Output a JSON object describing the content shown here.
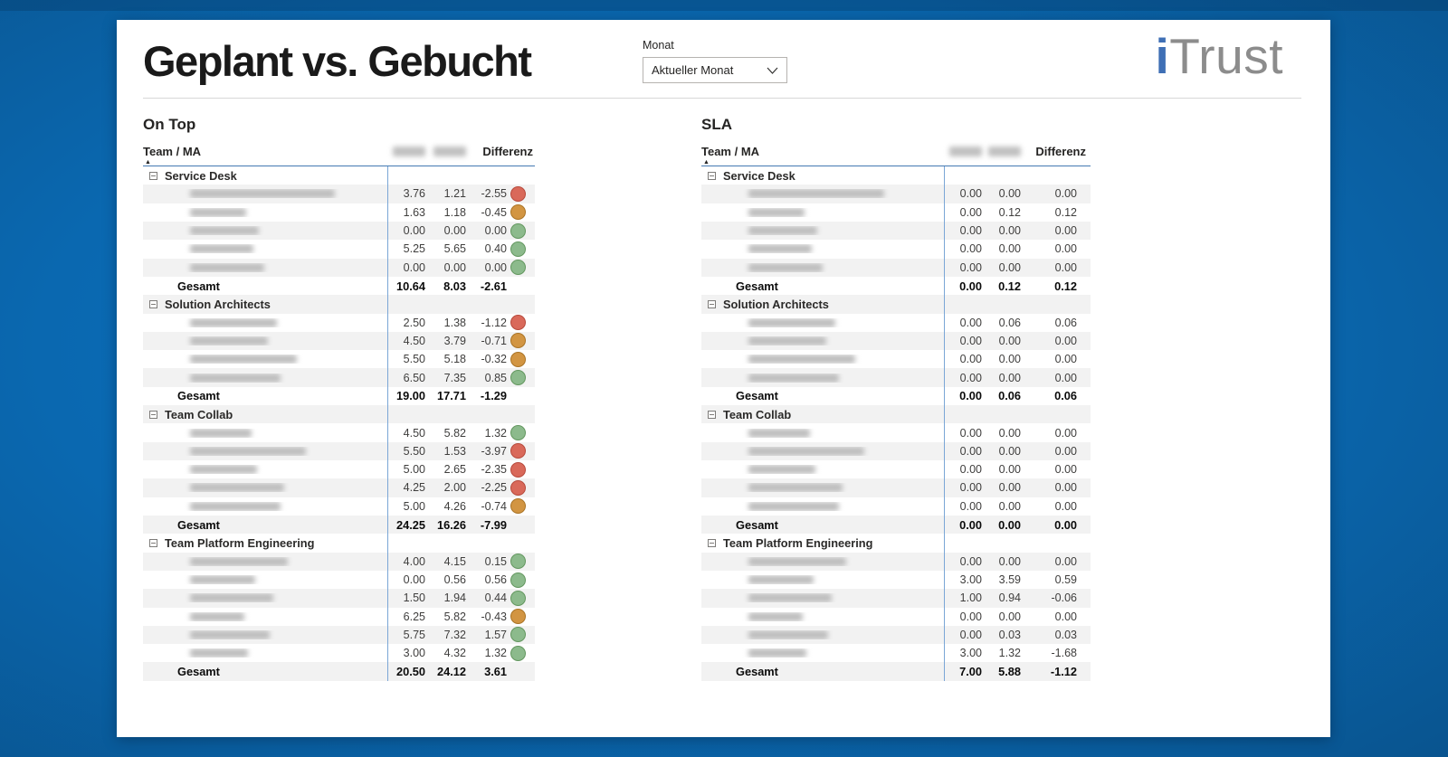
{
  "header": {
    "title": "Geplant vs. Gebucht",
    "filter_label": "Monat",
    "filter_value": "Aktueller Monat",
    "logo_i": "i",
    "logo_rest": "Trust"
  },
  "columns": {
    "team": "Team / MA",
    "differenz": "Differenz",
    "redacted_middle_headers": 2
  },
  "total_label": "Gesamt",
  "status_colors": {
    "red": {
      "fill": "#D9695A",
      "border": "#B74A3C"
    },
    "orange": {
      "fill": "#D29542",
      "border": "#AA7426"
    },
    "green": {
      "fill": "#8CBA8C",
      "border": "#63975F"
    }
  },
  "tables": [
    {
      "id": "ontop",
      "title": "On Top",
      "has_status": true,
      "groups": [
        {
          "name": "Service Desk",
          "rows": [
            {
              "name_w": 160,
              "plan": "3.76",
              "gebucht": "1.21",
              "diff": "-2.55",
              "status": "red"
            },
            {
              "name_w": 62,
              "plan": "1.63",
              "gebucht": "1.18",
              "diff": "-0.45",
              "status": "orange"
            },
            {
              "name_w": 76,
              "plan": "0.00",
              "gebucht": "0.00",
              "diff": "0.00",
              "status": "green"
            },
            {
              "name_w": 70,
              "plan": "5.25",
              "gebucht": "5.65",
              "diff": "0.40",
              "status": "green"
            },
            {
              "name_w": 82,
              "plan": "0.00",
              "gebucht": "0.00",
              "diff": "0.00",
              "status": "green"
            }
          ],
          "total": {
            "plan": "10.64",
            "gebucht": "8.03",
            "diff": "-2.61"
          }
        },
        {
          "name": "Solution Architects",
          "rows": [
            {
              "name_w": 96,
              "plan": "2.50",
              "gebucht": "1.38",
              "diff": "-1.12",
              "status": "red"
            },
            {
              "name_w": 86,
              "plan": "4.50",
              "gebucht": "3.79",
              "diff": "-0.71",
              "status": "orange"
            },
            {
              "name_w": 118,
              "plan": "5.50",
              "gebucht": "5.18",
              "diff": "-0.32",
              "status": "orange"
            },
            {
              "name_w": 100,
              "plan": "6.50",
              "gebucht": "7.35",
              "diff": "0.85",
              "status": "green"
            }
          ],
          "total": {
            "plan": "19.00",
            "gebucht": "17.71",
            "diff": "-1.29"
          }
        },
        {
          "name": "Team Collab",
          "rows": [
            {
              "name_w": 68,
              "plan": "4.50",
              "gebucht": "5.82",
              "diff": "1.32",
              "status": "green"
            },
            {
              "name_w": 128,
              "plan": "5.50",
              "gebucht": "1.53",
              "diff": "-3.97",
              "status": "red"
            },
            {
              "name_w": 74,
              "plan": "5.00",
              "gebucht": "2.65",
              "diff": "-2.35",
              "status": "red"
            },
            {
              "name_w": 104,
              "plan": "4.25",
              "gebucht": "2.00",
              "diff": "-2.25",
              "status": "red"
            },
            {
              "name_w": 100,
              "plan": "5.00",
              "gebucht": "4.26",
              "diff": "-0.74",
              "status": "orange"
            }
          ],
          "total": {
            "plan": "24.25",
            "gebucht": "16.26",
            "diff": "-7.99"
          }
        },
        {
          "name": "Team Platform Engineering",
          "rows": [
            {
              "name_w": 108,
              "plan": "4.00",
              "gebucht": "4.15",
              "diff": "0.15",
              "status": "green"
            },
            {
              "name_w": 72,
              "plan": "0.00",
              "gebucht": "0.56",
              "diff": "0.56",
              "status": "green"
            },
            {
              "name_w": 92,
              "plan": "1.50",
              "gebucht": "1.94",
              "diff": "0.44",
              "status": "green"
            },
            {
              "name_w": 60,
              "plan": "6.25",
              "gebucht": "5.82",
              "diff": "-0.43",
              "status": "orange"
            },
            {
              "name_w": 88,
              "plan": "5.75",
              "gebucht": "7.32",
              "diff": "1.57",
              "status": "green"
            },
            {
              "name_w": 64,
              "plan": "3.00",
              "gebucht": "4.32",
              "diff": "1.32",
              "status": "green"
            }
          ],
          "total": {
            "plan": "20.50",
            "gebucht": "24.12",
            "diff": "3.61"
          }
        }
      ]
    },
    {
      "id": "sla",
      "title": "SLA",
      "has_status": false,
      "groups": [
        {
          "name": "Service Desk",
          "rows": [
            {
              "name_w": 150,
              "plan": "0.00",
              "gebucht": "0.00",
              "diff": "0.00"
            },
            {
              "name_w": 62,
              "plan": "0.00",
              "gebucht": "0.12",
              "diff": "0.12"
            },
            {
              "name_w": 76,
              "plan": "0.00",
              "gebucht": "0.00",
              "diff": "0.00"
            },
            {
              "name_w": 70,
              "plan": "0.00",
              "gebucht": "0.00",
              "diff": "0.00"
            },
            {
              "name_w": 82,
              "plan": "0.00",
              "gebucht": "0.00",
              "diff": "0.00"
            }
          ],
          "total": {
            "plan": "0.00",
            "gebucht": "0.12",
            "diff": "0.12"
          }
        },
        {
          "name": "Solution Architects",
          "rows": [
            {
              "name_w": 96,
              "plan": "0.00",
              "gebucht": "0.06",
              "diff": "0.06"
            },
            {
              "name_w": 86,
              "plan": "0.00",
              "gebucht": "0.00",
              "diff": "0.00"
            },
            {
              "name_w": 118,
              "plan": "0.00",
              "gebucht": "0.00",
              "diff": "0.00"
            },
            {
              "name_w": 100,
              "plan": "0.00",
              "gebucht": "0.00",
              "diff": "0.00"
            }
          ],
          "total": {
            "plan": "0.00",
            "gebucht": "0.06",
            "diff": "0.06"
          }
        },
        {
          "name": "Team Collab",
          "rows": [
            {
              "name_w": 68,
              "plan": "0.00",
              "gebucht": "0.00",
              "diff": "0.00"
            },
            {
              "name_w": 128,
              "plan": "0.00",
              "gebucht": "0.00",
              "diff": "0.00"
            },
            {
              "name_w": 74,
              "plan": "0.00",
              "gebucht": "0.00",
              "diff": "0.00"
            },
            {
              "name_w": 104,
              "plan": "0.00",
              "gebucht": "0.00",
              "diff": "0.00"
            },
            {
              "name_w": 100,
              "plan": "0.00",
              "gebucht": "0.00",
              "diff": "0.00"
            }
          ],
          "total": {
            "plan": "0.00",
            "gebucht": "0.00",
            "diff": "0.00"
          }
        },
        {
          "name": "Team Platform Engineering",
          "rows": [
            {
              "name_w": 108,
              "plan": "0.00",
              "gebucht": "0.00",
              "diff": "0.00"
            },
            {
              "name_w": 72,
              "plan": "3.00",
              "gebucht": "3.59",
              "diff": "0.59"
            },
            {
              "name_w": 92,
              "plan": "1.00",
              "gebucht": "0.94",
              "diff": "-0.06"
            },
            {
              "name_w": 60,
              "plan": "0.00",
              "gebucht": "0.00",
              "diff": "0.00"
            },
            {
              "name_w": 88,
              "plan": "0.00",
              "gebucht": "0.03",
              "diff": "0.03"
            },
            {
              "name_w": 64,
              "plan": "3.00",
              "gebucht": "1.32",
              "diff": "-1.68"
            }
          ],
          "total": {
            "plan": "7.00",
            "gebucht": "5.88",
            "diff": "-1.12"
          }
        }
      ]
    }
  ]
}
